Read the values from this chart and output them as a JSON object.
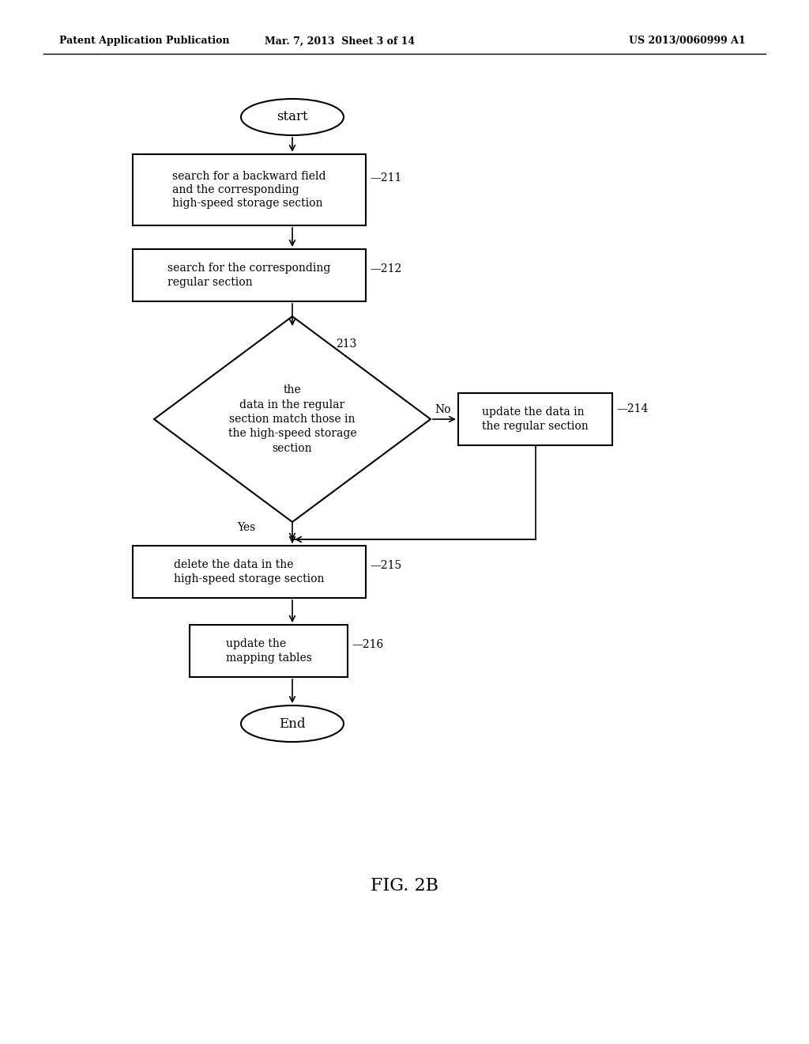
{
  "bg_color": "#ffffff",
  "text_color": "#000000",
  "header_left": "Patent Application Publication",
  "header_mid": "Mar. 7, 2013  Sheet 3 of 14",
  "header_right": "US 2013/0060999 A1",
  "fig_label": "FIG. 2B",
  "lw": 1.5,
  "arrow_lw": 1.2,
  "fontsize_body": 10,
  "fontsize_header": 9,
  "fontsize_fig": 16
}
